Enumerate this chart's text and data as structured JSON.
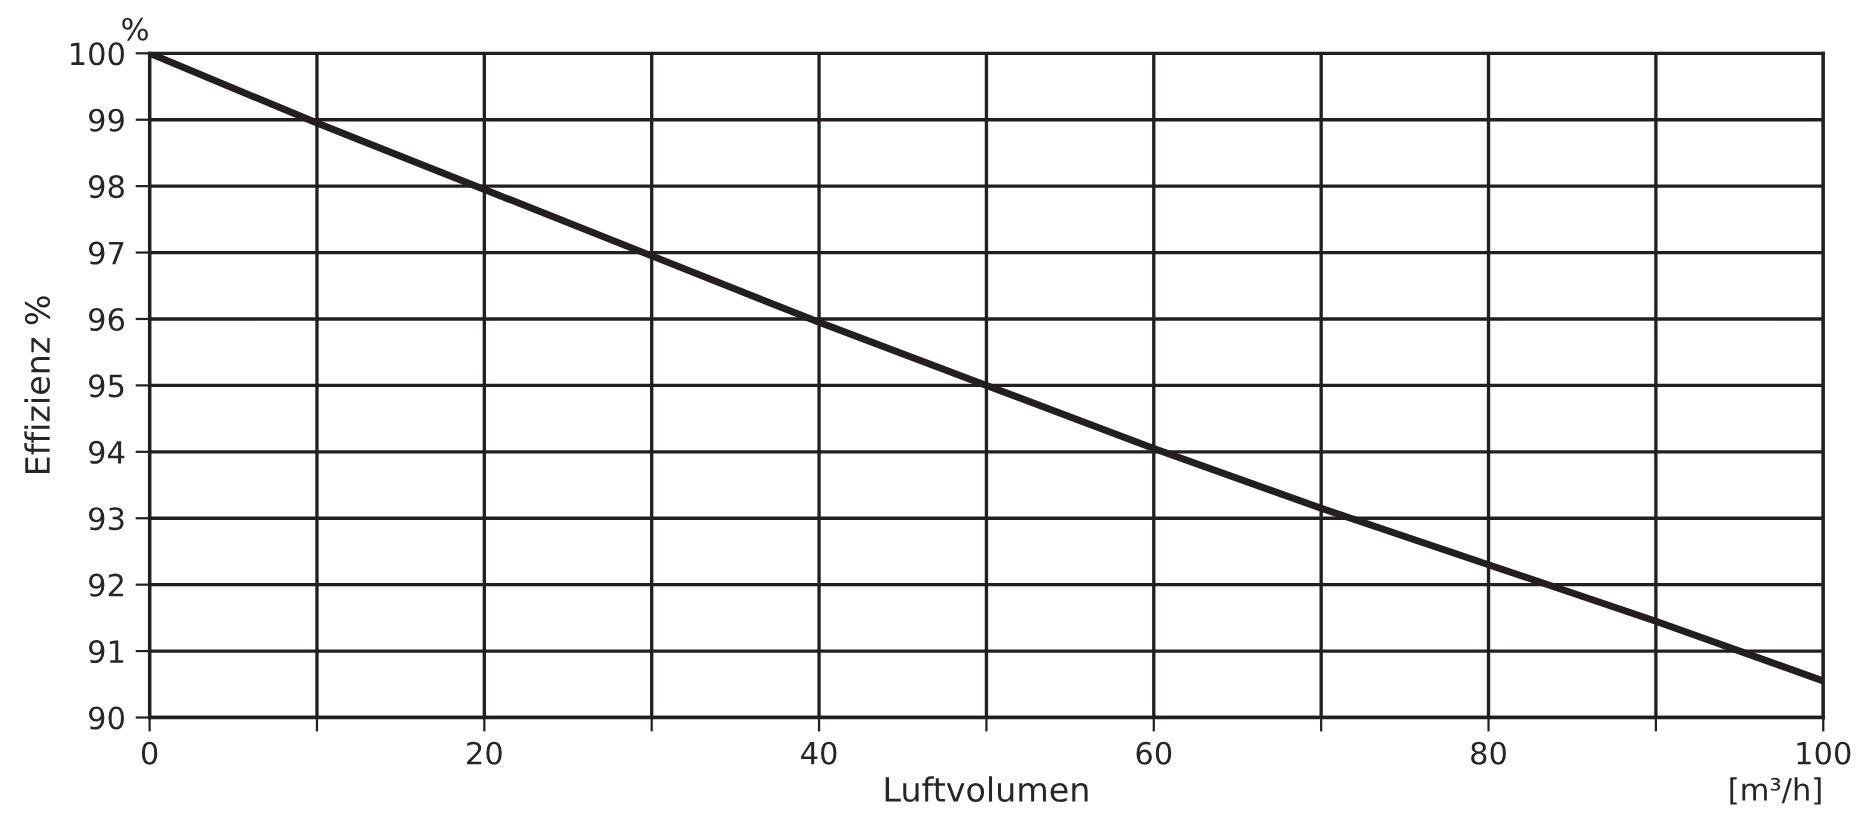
{
  "chart_data": {
    "type": "line",
    "xlabel": "Luftvolumen",
    "ylabel": "Effizienz %",
    "annotations": [
      "%",
      "[m³/h]"
    ],
    "x": [
      0,
      10,
      20,
      30,
      40,
      50,
      60,
      70,
      80,
      90,
      100
    ],
    "series": [
      {
        "color": "#231f20",
        "values": [
          100,
          98.95,
          97.95,
          96.95,
          95.95,
          95.0,
          94.05,
          93.15,
          92.3,
          91.45,
          90.55
        ]
      }
    ],
    "xlim": [
      0,
      100
    ],
    "ylim": [
      90,
      100
    ],
    "xticks": [
      0,
      {
        "value": 10,
        "label": null
      },
      20,
      {
        "value": 30,
        "label": null
      },
      40,
      {
        "value": 50,
        "label": null
      },
      60,
      {
        "value": 70,
        "label": null
      },
      80,
      {
        "value": 90,
        "label": null
      },
      100
    ],
    "yticks": [
      90,
      91,
      92,
      93,
      94,
      95,
      96,
      97,
      98,
      99,
      100
    ],
    "grid": true,
    "marker": "none",
    "line_style": "solid"
  }
}
